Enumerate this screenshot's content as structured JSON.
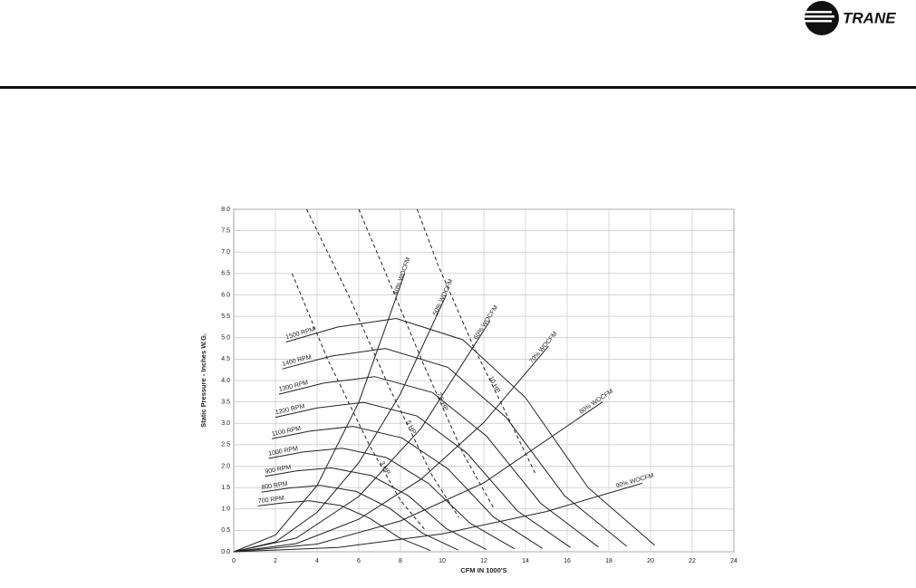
{
  "header": {
    "brand": "TRANE"
  },
  "chart_data": {
    "type": "line",
    "y_label": "Static Pressure - Inches W.G.",
    "x_label": "CFM IN 1000'S",
    "xlim": [
      0,
      24
    ],
    "ylim": [
      0,
      8
    ],
    "xticks": [
      0,
      2,
      4,
      6,
      8,
      10,
      12,
      14,
      16,
      18,
      20,
      22,
      24
    ],
    "yticks": [
      {
        "value": 0,
        "label": "0.0"
      },
      0.5,
      {
        "value": 1,
        "label": "1.0"
      },
      1.5,
      {
        "value": 2,
        "label": "2.0"
      },
      2.5,
      {
        "value": 3,
        "label": "3.0"
      },
      3.5,
      {
        "value": 4,
        "label": "4.0"
      },
      4.5,
      {
        "value": 5,
        "label": "5.0"
      },
      5.5,
      {
        "value": 6,
        "label": "6.0"
      },
      6.5,
      {
        "value": 7,
        "label": "7.0"
      },
      7.5,
      {
        "value": 8,
        "label": "8.0"
      }
    ],
    "grid": true,
    "color": "#222222",
    "series": [
      {
        "name": "1500 RPM",
        "dash": false,
        "x": [
          2.5,
          5,
          7.8,
          11,
          14,
          17,
          20.2
        ],
        "values": [
          4.9,
          5.25,
          5.45,
          4.95,
          3.6,
          1.5,
          0.15
        ]
      },
      {
        "name": "1400 RPM",
        "dash": false,
        "x": [
          2.33,
          4.67,
          7.28,
          10.27,
          13.07,
          15.87,
          18.85
        ],
        "values": [
          4.27,
          4.57,
          4.75,
          4.31,
          3.14,
          1.31,
          0.13
        ]
      },
      {
        "name": "1300 RPM",
        "dash": false,
        "x": [
          2.17,
          4.33,
          6.76,
          9.53,
          12.13,
          14.73,
          17.5
        ],
        "values": [
          3.68,
          3.94,
          4.09,
          3.72,
          2.7,
          1.13,
          0.11
        ]
      },
      {
        "name": "1200 RPM",
        "dash": false,
        "x": [
          2.0,
          4.0,
          6.24,
          8.8,
          11.2,
          13.6,
          16.16
        ],
        "values": [
          3.14,
          3.36,
          3.49,
          3.17,
          2.3,
          0.96,
          0.1
        ]
      },
      {
        "name": "1100 RPM",
        "dash": false,
        "x": [
          1.83,
          3.67,
          5.72,
          8.07,
          10.27,
          12.47,
          14.81
        ],
        "values": [
          2.64,
          2.82,
          2.93,
          2.66,
          1.94,
          0.81,
          0.08
        ]
      },
      {
        "name": "1000 RPM",
        "dash": false,
        "x": [
          1.67,
          3.33,
          5.2,
          7.33,
          9.33,
          11.33,
          13.47
        ],
        "values": [
          2.18,
          2.33,
          2.42,
          2.2,
          1.6,
          0.67,
          0.07
        ]
      },
      {
        "name": "900 RPM",
        "dash": false,
        "x": [
          1.5,
          3.0,
          4.68,
          6.6,
          8.4,
          10.2,
          12.12
        ],
        "values": [
          1.76,
          1.89,
          1.96,
          1.78,
          1.3,
          0.54,
          0.05
        ]
      },
      {
        "name": "800 RPM",
        "dash": false,
        "x": [
          1.33,
          2.67,
          4.16,
          5.87,
          7.47,
          9.07,
          10.77
        ],
        "values": [
          1.39,
          1.49,
          1.55,
          1.41,
          1.02,
          0.43,
          0.04
        ]
      },
      {
        "name": "700 RPM",
        "dash": false,
        "x": [
          1.17,
          2.33,
          3.64,
          5.13,
          6.53,
          7.93,
          9.43
        ],
        "values": [
          1.07,
          1.14,
          1.19,
          1.08,
          0.78,
          0.33,
          0.03
        ]
      },
      {
        "name": "40% WOCFM",
        "dash": false,
        "x": [
          0,
          2,
          4,
          6,
          8.2
        ],
        "values": [
          0,
          0.39,
          1.55,
          3.49,
          6.5
        ]
      },
      {
        "name": "50% WOCFM",
        "dash": false,
        "x": [
          0,
          2,
          4,
          6,
          8,
          10.2
        ],
        "values": [
          0,
          0.23,
          0.92,
          2.08,
          3.69,
          6.0
        ]
      },
      {
        "name": "60% WOCFM",
        "dash": false,
        "x": [
          0,
          3,
          6,
          9,
          12.3
        ],
        "values": [
          0,
          0.32,
          1.29,
          2.89,
          5.4
        ]
      },
      {
        "name": "70% WOCFM",
        "dash": false,
        "x": [
          0,
          3,
          6,
          9,
          12,
          15.1
        ],
        "values": [
          0,
          0.19,
          0.76,
          1.7,
          3.02,
          4.8
        ]
      },
      {
        "name": "80% WOCFM",
        "dash": false,
        "x": [
          0,
          4,
          8,
          12,
          17.7
        ],
        "values": [
          0,
          0.18,
          0.72,
          1.61,
          3.5
        ]
      },
      {
        "name": "90% WOCFM",
        "dash": false,
        "x": [
          0,
          5,
          10,
          15,
          19.6
        ],
        "values": [
          0,
          0.1,
          0.42,
          0.94,
          1.6
        ]
      },
      {
        "name": "3 HP",
        "dash": true,
        "x": [
          2.8,
          4.5,
          6.5,
          8.0,
          9.2
        ],
        "values": [
          6.5,
          4.5,
          2.5,
          1.2,
          0.5
        ]
      },
      {
        "name": "5 HP",
        "dash": true,
        "x": [
          3.5,
          5.5,
          7.5,
          9.5,
          10.8
        ],
        "values": [
          8,
          6,
          3.8,
          1.8,
          0.8
        ]
      },
      {
        "name": "7.5 HP",
        "dash": true,
        "x": [
          6,
          7.3,
          9,
          11,
          12.5
        ],
        "values": [
          8,
          6.5,
          4.5,
          2.3,
          1.0
        ]
      },
      {
        "name": "10 HP",
        "dash": true,
        "x": [
          8.8,
          9.8,
          11.5,
          13.5,
          14.5
        ],
        "values": [
          8,
          6.7,
          4.8,
          2.8,
          1.8
        ]
      }
    ]
  }
}
